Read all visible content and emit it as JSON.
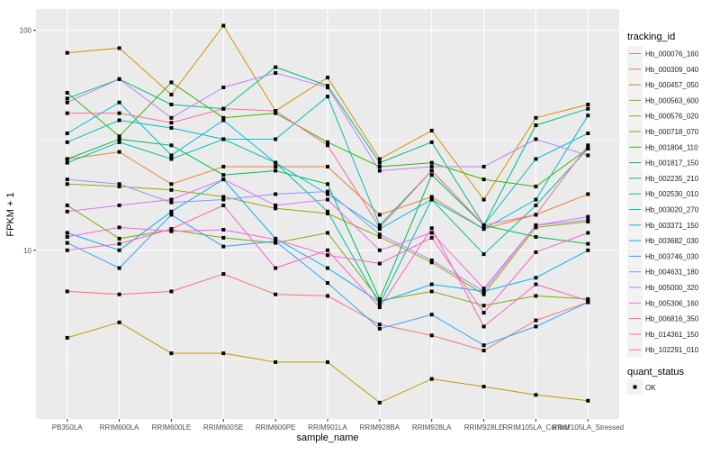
{
  "chart_data": {
    "type": "line",
    "title": "",
    "xlabel": "sample_name",
    "ylabel": "FPKM + 1",
    "yscale": "log10",
    "ylim": [
      1.71,
      125
    ],
    "yticks": [
      {
        "value": 10,
        "label": "10"
      },
      {
        "value": 100,
        "label": "100"
      }
    ],
    "grid": true,
    "categories": [
      "PB350LA",
      "RRIM600LA",
      "RRIM600LE",
      "RRIM600SE",
      "RRIM600PE",
      "RRIM901LA",
      "RRIM928BA",
      "RRIM928LA",
      "RRIM928LE",
      "RRIM105LA_Control",
      "RRIM105LA_Stressed"
    ],
    "legend": {
      "position": "right",
      "title": "tracking_id",
      "shape_title": "quant_status",
      "shape_label": "OK"
    },
    "series": [
      {
        "name": "Hb_000076_160",
        "color": "#F8766D",
        "values": [
          6.5,
          6.3,
          6.5,
          7.8,
          6.3,
          6.2,
          4.6,
          4.1,
          3.5,
          4.8,
          5.8
        ]
      },
      {
        "name": "Hb_000309_040",
        "color": "#EA8331",
        "values": [
          26,
          28,
          20,
          24,
          24,
          24,
          14.5,
          17.5,
          12.5,
          14.5,
          18
        ]
      },
      {
        "name": "Hb_000457_050",
        "color": "#D89000",
        "values": [
          79,
          83,
          51,
          105,
          43,
          61,
          26,
          35,
          17,
          40,
          46
        ]
      },
      {
        "name": "Hb_000563_600",
        "color": "#C09B00",
        "values": [
          4.0,
          4.7,
          3.4,
          3.4,
          3.1,
          3.1,
          2.03,
          2.6,
          2.4,
          2.2,
          2.07
        ]
      },
      {
        "name": "Hb_000576_020",
        "color": "#A3A500",
        "values": [
          20,
          19.5,
          18.8,
          17.5,
          15.5,
          14.7,
          11.5,
          8.8,
          6.3,
          12.7,
          13.5
        ]
      },
      {
        "name": "Hb_000718_070",
        "color": "#7CAE00",
        "values": [
          16,
          11.3,
          12.4,
          11.4,
          10.8,
          12,
          5.9,
          6.5,
          5.6,
          6.2,
          6.0
        ]
      },
      {
        "name": "Hb_001804_110",
        "color": "#39B600",
        "values": [
          52,
          33,
          58,
          40,
          42,
          31,
          24,
          25,
          21,
          19.5,
          29
        ]
      },
      {
        "name": "Hb_001817_150",
        "color": "#00BB4E",
        "values": [
          26,
          32,
          30,
          22,
          23,
          20,
          6,
          22,
          13,
          11.5,
          10.7
        ]
      },
      {
        "name": "Hb_002235_210",
        "color": "#00BF7D",
        "values": [
          49,
          60,
          46,
          44,
          68,
          56,
          25,
          31,
          13,
          37,
          44
        ]
      },
      {
        "name": "Hb_002530_010",
        "color": "#00C1A3",
        "values": [
          25,
          31,
          26,
          32,
          25,
          15,
          5.7,
          17,
          9.6,
          16,
          29
        ]
      },
      {
        "name": "Hb_003020_270",
        "color": "#00BFC4",
        "values": [
          31,
          39,
          36,
          32,
          32,
          50,
          13,
          23,
          13,
          26,
          34
        ]
      },
      {
        "name": "Hb_003371_150",
        "color": "#00BAE0",
        "values": [
          34,
          47,
          27,
          39,
          25,
          18,
          12.5,
          17,
          12.5,
          17,
          41
        ]
      },
      {
        "name": "Hb_003682_030",
        "color": "#00B0F6",
        "values": [
          12,
          10,
          15,
          21,
          11.3,
          8.3,
          5.8,
          7.0,
          6.5,
          7.5,
          10
        ]
      },
      {
        "name": "Hb_003746_030",
        "color": "#35A2FF",
        "values": [
          10.8,
          8.3,
          14.5,
          10.4,
          11,
          7.1,
          4.4,
          5.1,
          3.7,
          4.5,
          5.8
        ]
      },
      {
        "name": "Hb_004631_180",
        "color": "#9590FF",
        "values": [
          21,
          20,
          16.5,
          17,
          18,
          18.5,
          11.8,
          9,
          6.5,
          13,
          13.7
        ]
      },
      {
        "name": "Hb_005000_320",
        "color": "#C77CFF",
        "values": [
          47,
          60,
          40,
          55,
          64,
          55,
          23,
          24,
          24,
          32,
          27
        ]
      },
      {
        "name": "Hb_005306_160",
        "color": "#E76BF3",
        "values": [
          15,
          16,
          17,
          21,
          16,
          17,
          10,
          12,
          6.7,
          13,
          14.2
        ]
      },
      {
        "name": "Hb_006816_350",
        "color": "#FA62DB",
        "values": [
          11.5,
          12.7,
          12.2,
          12.4,
          11.2,
          9.5,
          8.7,
          11.4,
          5.2,
          9.8,
          12
        ]
      },
      {
        "name": "Hb_014361_150",
        "color": "#FF62BC",
        "values": [
          10,
          10.7,
          12.5,
          16,
          8.3,
          10,
          5.5,
          12.6,
          4.5,
          7,
          5.9
        ]
      },
      {
        "name": "Hb_102291_010",
        "color": "#FF6C91",
        "values": [
          42,
          42,
          38,
          44,
          43,
          30,
          12.7,
          23,
          13,
          14.5,
          30
        ]
      }
    ]
  }
}
